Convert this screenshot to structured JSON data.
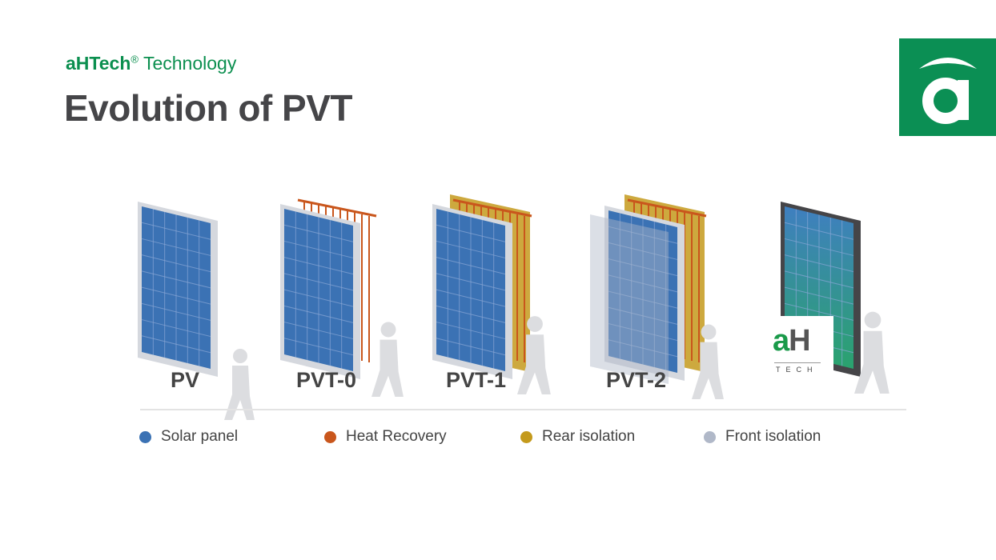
{
  "header": {
    "brand": "aHTech",
    "registered": "®",
    "subtitle_rest": " Technology",
    "title": "Evolution of PVT"
  },
  "logo": {
    "letter": "a",
    "color": "#0b8f54"
  },
  "stages": [
    {
      "label": "PV"
    },
    {
      "label": "PVT-0"
    },
    {
      "label": "PVT-1"
    },
    {
      "label": "PVT-2"
    },
    {
      "label": "",
      "badge_main": "aH",
      "badge_sub": "TECH"
    }
  ],
  "legend": [
    {
      "label": "Solar panel",
      "color": "#3b72b4"
    },
    {
      "label": "Heat Recovery",
      "color": "#c9561c"
    },
    {
      "label": "Rear isolation",
      "color": "#c49a1c"
    },
    {
      "label": "Front isolation",
      "color": "#b0b8c8"
    }
  ]
}
